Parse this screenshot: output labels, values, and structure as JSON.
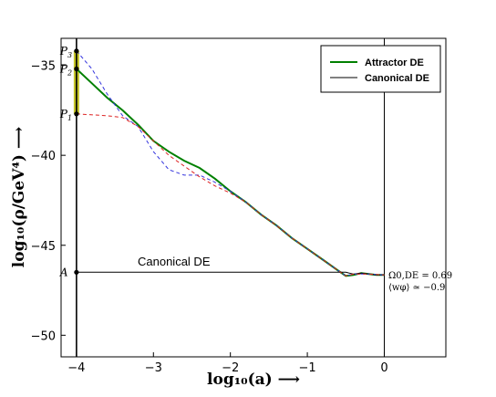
{
  "chart_data": {
    "type": "line",
    "xlabel": "log₁₀(a) ⟶",
    "ylabel": "log₁₀(ρ/GeV⁴) ⟶",
    "xlim": [
      -4.2,
      0.8
    ],
    "ylim": [
      -51.2,
      -33.5
    ],
    "xticks": [
      -4,
      -3,
      -2,
      -1,
      0
    ],
    "xtick_labels": [
      "−4",
      "−3",
      "−2",
      "−1",
      "0"
    ],
    "yticks": [
      -35,
      -40,
      -45,
      -50
    ],
    "ytick_labels": [
      "−35",
      "−40",
      "−45",
      "−50"
    ],
    "legend_position": "top-right",
    "legend": [
      {
        "label": "Attractor DE",
        "color": "#008000"
      },
      {
        "label": "Canonical DE",
        "color": "#000000"
      }
    ],
    "series": [
      {
        "name": "Attractor DE",
        "color": "#008000",
        "style": "solid",
        "x": [
          -4.0,
          -3.8,
          -3.6,
          -3.4,
          -3.2,
          -3.0,
          -2.8,
          -2.6,
          -2.4,
          -2.2,
          -2.0,
          -1.8,
          -1.6,
          -1.4,
          -1.2,
          -1.0,
          -0.8,
          -0.6,
          -0.5,
          -0.4,
          -0.3,
          -0.2,
          -0.1,
          0.0
        ],
        "y": [
          -35.2,
          -36.0,
          -36.8,
          -37.5,
          -38.3,
          -39.2,
          -39.8,
          -40.3,
          -40.7,
          -41.3,
          -42.0,
          -42.6,
          -43.3,
          -43.9,
          -44.6,
          -45.2,
          -45.8,
          -46.4,
          -46.7,
          -46.65,
          -46.55,
          -46.6,
          -46.65,
          -46.65
        ]
      },
      {
        "name": "Canonical DE",
        "color": "#000000",
        "style": "solid",
        "x": [
          -4.0,
          -0.5,
          -0.4,
          -0.3,
          -0.2,
          -0.1,
          0.0
        ],
        "y": [
          -46.5,
          -46.5,
          -46.6,
          -46.55,
          -46.6,
          -46.65,
          -46.65
        ]
      },
      {
        "name": "",
        "color": "#3333dd",
        "style": "dashed",
        "x": [
          -4.0,
          -3.8,
          -3.6,
          -3.4,
          -3.2,
          -3.0,
          -2.8,
          -2.6,
          -2.5,
          -2.4,
          -2.2,
          -2.0,
          -1.8,
          -1.6,
          -1.4,
          -1.2,
          -1.0,
          -0.8,
          -0.6,
          -0.5,
          -0.4,
          -0.2,
          0.0
        ],
        "y": [
          -34.2,
          -35.2,
          -36.6,
          -37.8,
          -38.4,
          -39.8,
          -40.8,
          -41.1,
          -41.1,
          -41.1,
          -41.5,
          -42.0,
          -42.6,
          -43.3,
          -43.9,
          -44.6,
          -45.2,
          -45.8,
          -46.4,
          -46.7,
          -46.6,
          -46.6,
          -46.65
        ]
      },
      {
        "name": "",
        "color": "#dd2222",
        "style": "dashed",
        "x": [
          -4.0,
          -3.6,
          -3.4,
          -3.2,
          -3.0,
          -2.8,
          -2.6,
          -2.4,
          -2.2,
          -2.0,
          -1.8,
          -1.6,
          -1.4,
          -1.2,
          -1.0,
          -0.8,
          -0.6,
          -0.5,
          -0.4,
          -0.2,
          0.0
        ],
        "y": [
          -37.7,
          -37.8,
          -37.9,
          -38.4,
          -39.2,
          -40.0,
          -40.6,
          -41.2,
          -41.7,
          -42.1,
          -42.6,
          -43.3,
          -43.9,
          -44.6,
          -45.2,
          -45.8,
          -46.4,
          -46.7,
          -46.6,
          -46.6,
          -46.65
        ]
      }
    ],
    "vertical_lines": [
      -4.0,
      0.0
    ],
    "highlight_band": {
      "x": -4.0,
      "y_from": -37.7,
      "y_to": -34.2,
      "color": "#b8b800"
    },
    "points": [
      {
        "label": "P",
        "sub": "3",
        "x": -4.0,
        "y": -34.2
      },
      {
        "label": "P",
        "sub": "2",
        "x": -4.0,
        "y": -35.2
      },
      {
        "label": "P",
        "sub": "1",
        "x": -4.0,
        "y": -37.7
      },
      {
        "label": "A",
        "sub": "",
        "x": -4.0,
        "y": -46.5
      }
    ],
    "annotations": {
      "canonical_label": "Canonical DE",
      "omega_text": "Ω0,DE = 0.69",
      "w_text": "⟨wφ⟩ ≃ −0.9"
    }
  }
}
